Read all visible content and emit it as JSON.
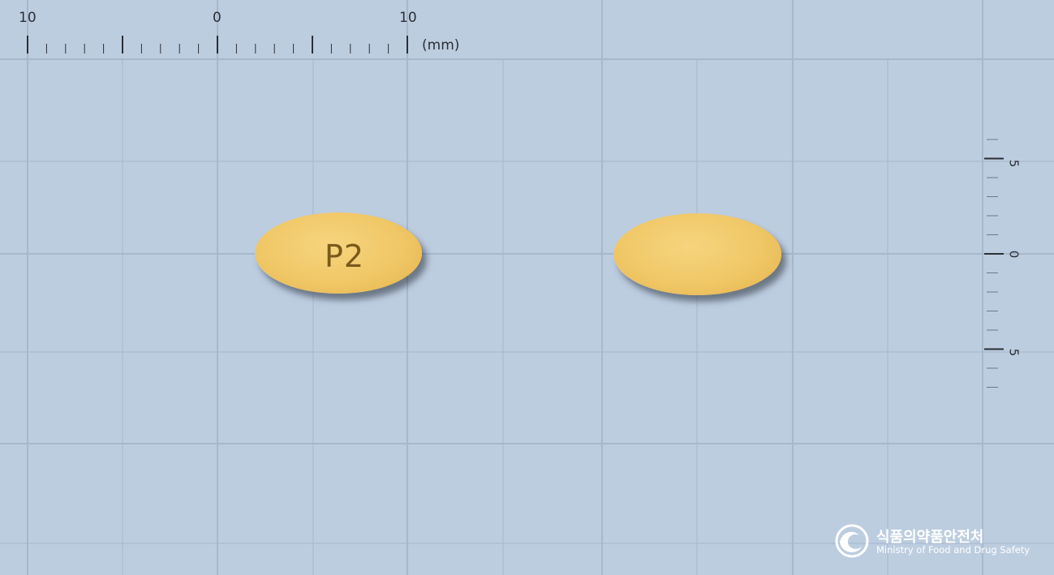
{
  "ruler": {
    "top_labels": [
      "10",
      "0",
      "10"
    ],
    "unit": "(mm)",
    "side_labels": [
      "5",
      "0",
      "5"
    ]
  },
  "pill_front": {
    "imprint": "P2",
    "color": "#f0c766"
  },
  "pill_back": {
    "imprint": "",
    "color": "#f0c766"
  },
  "logo": {
    "name_ko": "식품의약품안전처",
    "name_en": "Ministry of Food and Drug Safety"
  },
  "colors": {
    "background": "#bdcde0",
    "grid_line": "#a7b8cc",
    "ruler_ink": "#2b2f36"
  }
}
